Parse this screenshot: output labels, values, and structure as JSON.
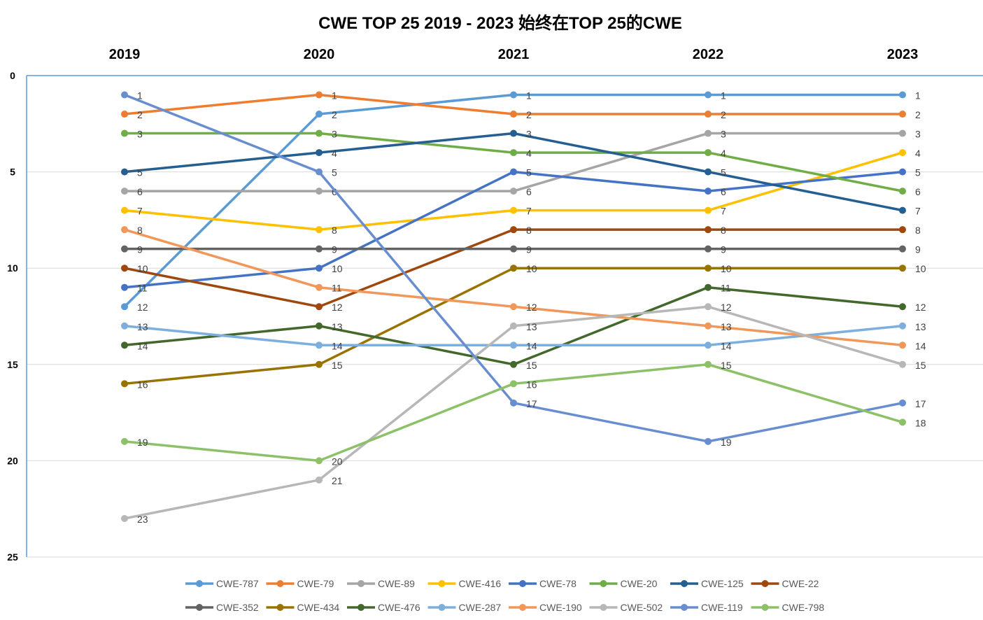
{
  "chart_data": {
    "type": "line",
    "title": "CWE TOP 25 2019 - 2023 始终在TOP 25的CWE",
    "categories": [
      "2019",
      "2020",
      "2021",
      "2022",
      "2023"
    ],
    "xlabel": "",
    "ylabel": "",
    "ylim": [
      0,
      25
    ],
    "y_reversed": true,
    "y_ticks": [
      0,
      5,
      10,
      15,
      20,
      25
    ],
    "x_axis_position": "top",
    "grid": true,
    "data_labels": true,
    "legend": "bottom",
    "series": [
      {
        "name": "CWE-787",
        "color": "#5B9BD5",
        "values": [
          12,
          2,
          1,
          1,
          1
        ]
      },
      {
        "name": "CWE-79",
        "color": "#ED7D31",
        "values": [
          2,
          1,
          2,
          2,
          2
        ]
      },
      {
        "name": "CWE-89",
        "color": "#A5A5A5",
        "values": [
          6,
          6,
          6,
          3,
          3
        ]
      },
      {
        "name": "CWE-416",
        "color": "#FFC000",
        "values": [
          7,
          8,
          7,
          7,
          4
        ]
      },
      {
        "name": "CWE-78",
        "color": "#4472C4",
        "values": [
          11,
          10,
          5,
          6,
          5
        ]
      },
      {
        "name": "CWE-20",
        "color": "#70AD47",
        "values": [
          3,
          3,
          4,
          4,
          6
        ]
      },
      {
        "name": "CWE-125",
        "color": "#255E91",
        "values": [
          5,
          4,
          3,
          5,
          7
        ]
      },
      {
        "name": "CWE-22",
        "color": "#9E480E",
        "values": [
          10,
          12,
          8,
          8,
          8
        ]
      },
      {
        "name": "CWE-352",
        "color": "#636363",
        "values": [
          9,
          9,
          9,
          9,
          9
        ]
      },
      {
        "name": "CWE-434",
        "color": "#997300",
        "values": [
          16,
          15,
          10,
          10,
          10
        ]
      },
      {
        "name": "CWE-476",
        "color": "#43682B",
        "values": [
          14,
          13,
          15,
          11,
          12
        ]
      },
      {
        "name": "CWE-287",
        "color": "#7CAFDD",
        "values": [
          13,
          14,
          14,
          14,
          13
        ]
      },
      {
        "name": "CWE-190",
        "color": "#F1975A",
        "values": [
          8,
          11,
          12,
          13,
          14
        ]
      },
      {
        "name": "CWE-502",
        "color": "#B7B7B7",
        "values": [
          23,
          21,
          13,
          12,
          15
        ]
      },
      {
        "name": "CWE-119",
        "color": "#698ED0",
        "values": [
          1,
          5,
          17,
          19,
          17
        ]
      },
      {
        "name": "CWE-798",
        "color": "#8CC168",
        "values": [
          19,
          20,
          16,
          15,
          18
        ]
      }
    ]
  }
}
